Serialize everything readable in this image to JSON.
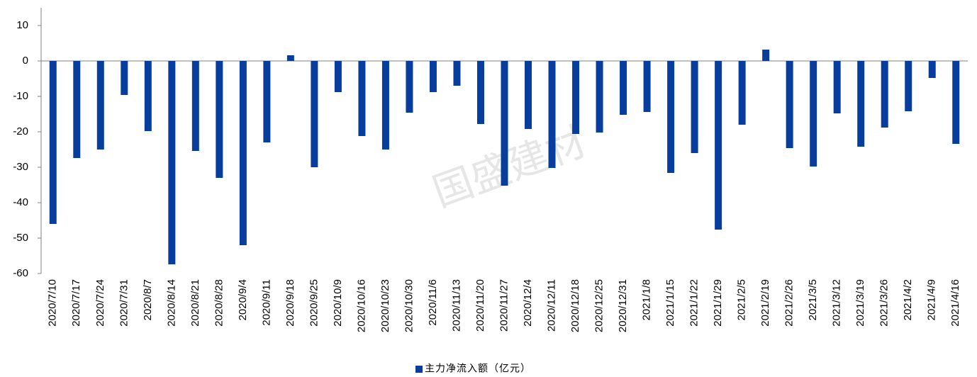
{
  "chart_data": {
    "type": "bar",
    "watermark": "国盛建材",
    "categories": [
      "2020/7/10",
      "2020/7/17",
      "2020/7/24",
      "2020/7/31",
      "2020/8/7",
      "2020/8/14",
      "2020/8/21",
      "2020/8/28",
      "2020/9/4",
      "2020/9/11",
      "2020/9/18",
      "2020/9/25",
      "2020/10/9",
      "2020/10/16",
      "2020/10/23",
      "2020/10/30",
      "2020/11/6",
      "2020/11/13",
      "2020/11/20",
      "2020/11/27",
      "2020/12/4",
      "2020/12/11",
      "2020/12/18",
      "2020/12/25",
      "2020/12/31",
      "2021/1/8",
      "2021/1/15",
      "2021/1/22",
      "2021/1/29",
      "2021/2/5",
      "2021/2/19",
      "2021/2/26",
      "2021/3/5",
      "2021/3/12",
      "2021/3/19",
      "2021/3/26",
      "2021/4/2",
      "2021/4/9",
      "2021/4/16"
    ],
    "series": [
      {
        "name": "主力净流入额（亿元）",
        "color": "#073e9e",
        "values": [
          -46,
          -27.4,
          -25,
          -9.6,
          -19.8,
          -57.4,
          -25.4,
          -33,
          -52,
          -23,
          1.6,
          -30,
          -8.8,
          -21.2,
          -25,
          -14.6,
          -8.8,
          -7,
          -17.8,
          -35.2,
          -19.2,
          -30.2,
          -20.6,
          -20.2,
          -15.2,
          -14.4,
          -31.6,
          -26,
          -47.6,
          -18,
          3.2,
          -24.6,
          -29.8,
          -14.8,
          -24.2,
          -18.8,
          -14.2,
          -4.8,
          -23.4
        ]
      }
    ],
    "ylim": [
      -60,
      15
    ],
    "yticks": [
      10,
      0,
      -10,
      -20,
      -30,
      -40,
      -50,
      -60
    ],
    "legend": "bottom"
  }
}
